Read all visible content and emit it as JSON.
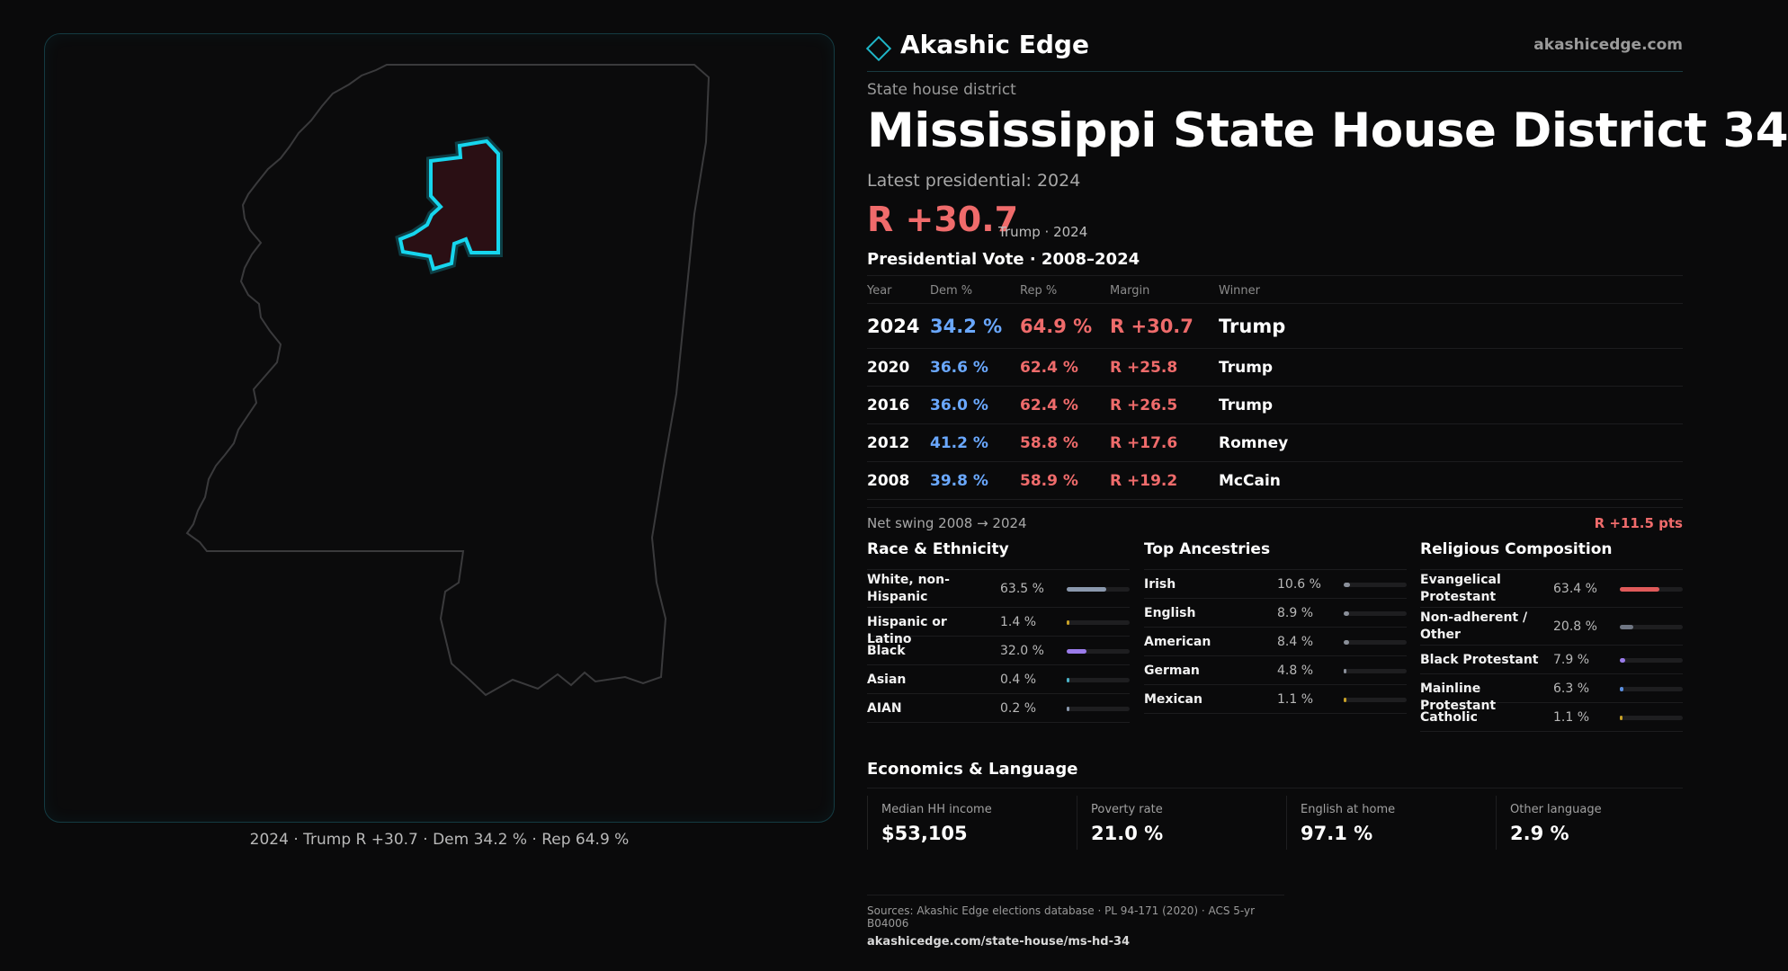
{
  "brand": {
    "name": "Akashic Edge",
    "url": "akashicedge.com"
  },
  "header": {
    "eyebrow": "State house district",
    "title": "Mississippi State House District 34",
    "latest": "Latest presidential: 2024",
    "margin": "R +30.7",
    "margin_sub": "Trump · 2024"
  },
  "map": {
    "caption": "2024 · Trump R +30.7 · Dem 34.2 % · Rep 64.9 %",
    "state_outline_color": "#3a3a3c",
    "district_color": "#16d6ee",
    "district_fill": "#2a0f14"
  },
  "vote": {
    "title": "Presidential Vote · 2008–2024",
    "headers": {
      "year": "Year",
      "dem": "Dem %",
      "rep": "Rep %",
      "margin": "Margin",
      "winner": "Winner"
    },
    "rows": [
      {
        "year": "2024",
        "dem": "34.2 %",
        "rep": "64.9 %",
        "margin": "R +30.7",
        "winner": "Trump"
      },
      {
        "year": "2020",
        "dem": "36.6 %",
        "rep": "62.4 %",
        "margin": "R +25.8",
        "winner": "Trump"
      },
      {
        "year": "2016",
        "dem": "36.0 %",
        "rep": "62.4 %",
        "margin": "R +26.5",
        "winner": "Trump"
      },
      {
        "year": "2012",
        "dem": "41.2 %",
        "rep": "58.8 %",
        "margin": "R +17.6",
        "winner": "Romney"
      },
      {
        "year": "2008",
        "dem": "39.8 %",
        "rep": "58.9 %",
        "margin": "R +19.2",
        "winner": "McCain"
      }
    ],
    "swing_label": "Net swing 2008 → 2024",
    "swing_value": "R +11.5 pts"
  },
  "race": {
    "title": "Race & Ethnicity",
    "items": [
      {
        "label": "White, non-Hispanic",
        "pct": "63.5 %",
        "value": 0.635,
        "color": "#8a98ad"
      },
      {
        "label": "Hispanic or Latino",
        "pct": "1.4 %",
        "value": 0.014,
        "color": "#c9a227"
      },
      {
        "label": "Black",
        "pct": "32.0 %",
        "value": 0.32,
        "color": "#9a7bea"
      },
      {
        "label": "Asian",
        "pct": "0.4 %",
        "value": 0.004,
        "color": "#4bb3c8"
      },
      {
        "label": "AIAN",
        "pct": "0.2 %",
        "value": 0.002,
        "color": "#8a98ad"
      }
    ]
  },
  "ancestry": {
    "title": "Top Ancestries",
    "items": [
      {
        "label": "Irish",
        "pct": "10.6 %",
        "value": 0.106,
        "color": "#8a8f99"
      },
      {
        "label": "English",
        "pct": "8.9 %",
        "value": 0.089,
        "color": "#8a8f99"
      },
      {
        "label": "American",
        "pct": "8.4 %",
        "value": 0.084,
        "color": "#8a8f99"
      },
      {
        "label": "German",
        "pct": "4.8 %",
        "value": 0.048,
        "color": "#8a8f99"
      },
      {
        "label": "Mexican",
        "pct": "1.1 %",
        "value": 0.011,
        "color": "#c9a227"
      }
    ]
  },
  "religion": {
    "title": "Religious Composition",
    "items": [
      {
        "label": "Evangelical Protestant",
        "pct": "63.4 %",
        "value": 0.634,
        "color": "#e05a5a"
      },
      {
        "label": "Non-adherent / Other",
        "pct": "20.8 %",
        "value": 0.208,
        "color": "#6f7683"
      },
      {
        "label": "Black Protestant",
        "pct": "7.9 %",
        "value": 0.079,
        "color": "#9a7bea"
      },
      {
        "label": "Mainline Protestant",
        "pct": "6.3 %",
        "value": 0.063,
        "color": "#5b8fe0"
      },
      {
        "label": "Catholic",
        "pct": "1.1 %",
        "value": 0.011,
        "color": "#c9a227"
      }
    ]
  },
  "economics": {
    "title": "Economics & Language",
    "items": [
      {
        "label": "Median HH income",
        "value": "$53,105"
      },
      {
        "label": "Poverty rate",
        "value": "21.0 %"
      },
      {
        "label": "English at home",
        "value": "97.1 %"
      },
      {
        "label": "Other language",
        "value": "2.9 %"
      }
    ]
  },
  "sources": {
    "line1": "Sources: Akashic Edge elections database · PL 94-171 (2020) · ACS 5-yr B04006",
    "line2": "akashicedge.com/state-house/ms-hd-34"
  }
}
